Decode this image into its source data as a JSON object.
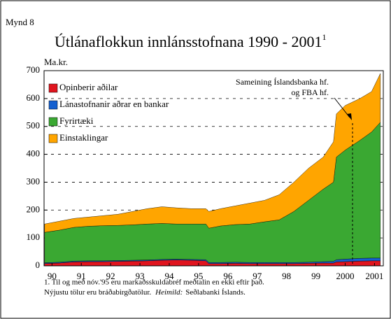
{
  "figure_label": "Mynd 8",
  "chart_data": {
    "type": "stacked_area",
    "title": "Útlánaflokkun innlánsstofnana 1990 - 2001",
    "title_superscript": "1",
    "ylabel": "Ma.kr.",
    "x": [
      1990.25,
      1990.75,
      1991.25,
      1991.75,
      1992.25,
      1992.75,
      1993.25,
      1993.75,
      1994.25,
      1994.75,
      1995.25,
      1995.75,
      1995.85,
      1996.25,
      1996.75,
      1997.25,
      1997.75,
      1998.25,
      1998.75,
      1999.25,
      1999.75,
      2000.1,
      2000.2,
      2000.5,
      2001,
      2001.4,
      2001.7
    ],
    "series": [
      {
        "name": "Opinberir aðilar",
        "color": "#e0141e",
        "values": [
          8,
          10,
          14,
          15,
          15,
          16,
          17,
          18,
          20,
          21,
          20,
          18,
          8,
          8,
          9,
          8,
          8,
          8,
          8,
          9,
          10,
          10,
          14,
          15,
          17,
          18,
          18
        ]
      },
      {
        "name": "Lánastofnanir aðrar en bankar",
        "color": "#1560d0",
        "values": [
          3,
          3,
          3,
          3,
          3,
          3,
          3,
          3,
          3,
          3,
          3,
          4,
          4,
          4,
          4,
          4,
          4,
          4,
          4,
          4,
          5,
          6,
          8,
          9,
          10,
          10,
          10
        ]
      },
      {
        "name": "Fyrirtæki",
        "color": "#3aa832",
        "values": [
          109,
          115,
          121,
          124,
          126,
          126,
          127,
          129,
          129,
          126,
          127,
          128,
          123,
          131,
          135,
          138,
          146,
          153,
          183,
          222,
          260,
          284,
          368,
          391,
          423,
          452,
          487
        ]
      },
      {
        "name": "Einstaklingar",
        "color": "#ffa500",
        "values": [
          30,
          32,
          32,
          33,
          36,
          40,
          48,
          55,
          60,
          58,
          55,
          55,
          60,
          62,
          67,
          75,
          77,
          90,
          105,
          115,
          115,
          145,
          155,
          160,
          150,
          145,
          175
        ]
      }
    ],
    "xlim": [
      1990.23,
      2001.8
    ],
    "xticks": [
      {
        "value": 1990.5,
        "label": "90"
      },
      {
        "value": 1991.5,
        "label": "91"
      },
      {
        "value": 1992.5,
        "label": "92"
      },
      {
        "value": 1993.5,
        "label": "93"
      },
      {
        "value": 1994.5,
        "label": "94"
      },
      {
        "value": 1995.5,
        "label": "95"
      },
      {
        "value": 1996.5,
        "label": "96"
      },
      {
        "value": 1997.5,
        "label": "97"
      },
      {
        "value": 1998.5,
        "label": "98"
      },
      {
        "value": 1999.5,
        "label": "99"
      },
      {
        "value": 2000.5,
        "label": "2000"
      },
      {
        "value": 2001.5,
        "label": "2001"
      }
    ],
    "ylim": [
      0,
      700
    ],
    "yticks": [
      0,
      100,
      200,
      300,
      400,
      500,
      600,
      700
    ],
    "grid": true,
    "legend": "upper left",
    "annotation": [
      "Sameining Íslandsbanka hf.",
      "og FBA hf."
    ]
  },
  "footnotes": {
    "line1": "1. Til og með nóv.'95 eru markaðsskuldabréf meðtalin en ekki eftir það.",
    "line2": "Nýjustu tölur eru bráðabirgðatölur.",
    "source_label": "Heimild:",
    "source": "Seðlabanki Íslands."
  }
}
